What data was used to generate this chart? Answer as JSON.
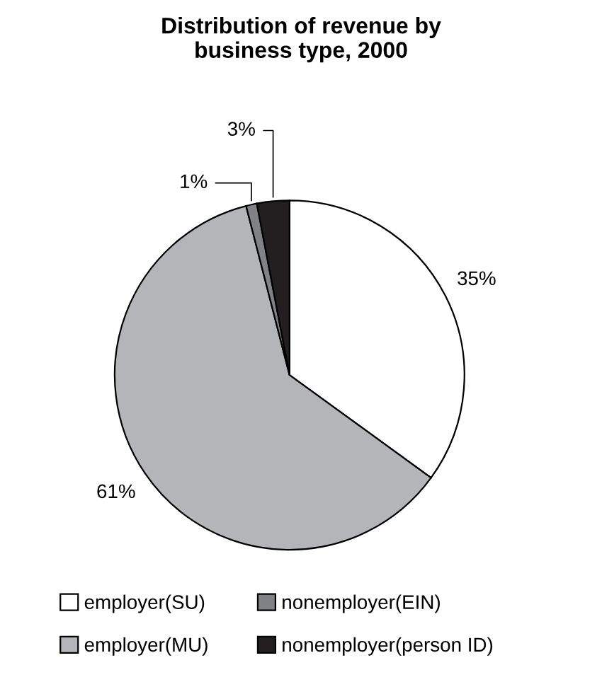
{
  "chart_data": {
    "type": "pie",
    "title": "Distribution of revenue by\nbusiness type, 2000",
    "categories": [
      "employer(SU)",
      "employer(MU)",
      "nonemployer(EIN)",
      "nonemployer(person ID)"
    ],
    "values": [
      35,
      61,
      1,
      3
    ],
    "colors": [
      "#ffffff",
      "#b3b5b8",
      "#808285",
      "#231f20"
    ],
    "value_labels": [
      "35%",
      "61%",
      "1%",
      "3%"
    ],
    "legend": "bottom"
  }
}
